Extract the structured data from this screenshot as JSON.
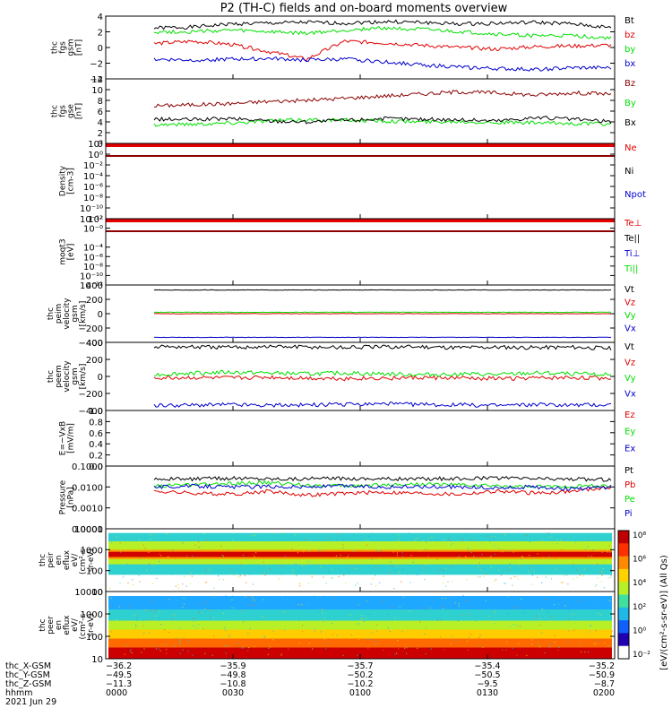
{
  "title": "P2 (TH-C) fields and on-board moments overview",
  "colors": {
    "black": "#000000",
    "red": "#e00000",
    "green": "#00e000",
    "blue": "#0000cc",
    "darkred": "#8b0000"
  },
  "chart_data": [
    {
      "type": "line",
      "id": "fgs",
      "ylabel": [
        "thc",
        "fgs",
        "gsm",
        "[nT]"
      ],
      "ylim": [
        -4,
        4
      ],
      "yticks": [
        "4",
        "2",
        "0",
        "−2",
        "−4"
      ],
      "ytick_values": [
        4,
        2,
        0,
        -2,
        -4
      ],
      "series": [
        {
          "name": "Bt",
          "color": "black",
          "values": [
            2.5,
            2.6,
            3.0,
            3.1,
            3.2,
            3.1,
            3.3,
            3.2,
            3.0,
            3.1,
            3.2,
            3.0,
            2.5
          ]
        },
        {
          "name": "bz",
          "color": "red",
          "values": [
            0.5,
            0.8,
            0.4,
            -0.5,
            -1.5,
            0.8,
            0.6,
            0.3,
            0.0,
            -0.2,
            0.1,
            0.2,
            0.3
          ]
        },
        {
          "name": "by",
          "color": "green",
          "values": [
            2.0,
            2.0,
            2.2,
            2.0,
            1.8,
            2.2,
            2.5,
            2.3,
            2.0,
            1.7,
            1.5,
            1.5,
            1.2
          ]
        },
        {
          "name": "bx",
          "color": "blue",
          "values": [
            -1.5,
            -1.6,
            -1.5,
            -1.4,
            -1.6,
            -1.5,
            -1.8,
            -2.2,
            -2.5,
            -2.7,
            -2.8,
            -2.6,
            -2.6
          ]
        }
      ]
    },
    {
      "type": "line",
      "id": "fgs-gse",
      "ylabel": [
        "thc",
        "fgs",
        "gse",
        "[nT]"
      ],
      "ylim": [
        0,
        12
      ],
      "yticks": [
        "12",
        "10",
        "8",
        "6",
        "4",
        "2",
        "0"
      ],
      "ytick_values": [
        12,
        10,
        8,
        6,
        4,
        2,
        0
      ],
      "series": [
        {
          "name": "Bz",
          "color": "darkred",
          "values": [
            7.0,
            7.2,
            7.4,
            7.8,
            8.0,
            8.4,
            8.8,
            9.2,
            9.6,
            9.4,
            9.0,
            9.4,
            9.2
          ]
        },
        {
          "name": "By",
          "color": "green",
          "values": [
            3.5,
            3.6,
            3.8,
            4.2,
            4.4,
            4.3,
            4.2,
            4.0,
            4.1,
            3.9,
            3.8,
            3.7,
            3.6
          ]
        },
        {
          "name": "Bx",
          "color": "black",
          "values": [
            4.5,
            4.4,
            4.6,
            4.2,
            4.0,
            4.3,
            4.6,
            4.5,
            4.4,
            4.2,
            4.8,
            4.5,
            4.0
          ]
        }
      ]
    },
    {
      "type": "line",
      "id": "density",
      "ylabel": [
        "Density",
        "[cm-3]"
      ],
      "yticks": [
        "10²",
        "10⁰",
        "10⁻²",
        "10⁻⁴",
        "10⁻⁶",
        "10⁻⁸",
        "10⁻¹⁰",
        "10⁻¹²"
      ],
      "ylim": [
        -12,
        2
      ],
      "ytick_values": [
        2,
        0,
        -2,
        -4,
        -6,
        -8,
        -10,
        -12
      ],
      "yscale": "log",
      "series": [
        {
          "name": "Ne",
          "color": "red"
        },
        {
          "name": "Ni",
          "color": "black"
        },
        {
          "name": "Npot",
          "color": "blue"
        }
      ]
    },
    {
      "type": "line",
      "id": "temperature",
      "ylabel": [
        "moqt3",
        "[eV]"
      ],
      "yticks": [
        "10²",
        "10⁻⁰",
        "10⁻⁴",
        "10⁻⁶",
        "10⁻⁸",
        "10⁻¹⁰",
        "10⁻¹²"
      ],
      "ylim": [
        -12,
        2
      ],
      "ytick_values": [
        2,
        0,
        -4,
        -6,
        -8,
        -10,
        -12
      ],
      "yscale": "log",
      "series": [
        {
          "name": "Te⊥",
          "color": "red"
        },
        {
          "name": "Te||",
          "color": "black"
        },
        {
          "name": "Ti⊥",
          "color": "blue"
        },
        {
          "name": "Ti||",
          "color": "green"
        }
      ]
    },
    {
      "type": "line",
      "id": "peim-velocity",
      "ylabel": [
        "thc",
        "peim",
        "velocity",
        "gsm",
        "[km/s]"
      ],
      "ylim": [
        -400,
        400
      ],
      "yticks": [
        "400",
        "200",
        "0",
        "−200",
        "−400"
      ],
      "ytick_values": [
        400,
        200,
        0,
        -200,
        -400
      ],
      "series": [
        {
          "name": "Vt",
          "color": "black",
          "values": [
            330,
            330,
            330,
            330,
            330,
            330,
            330,
            330,
            330,
            330,
            330,
            330,
            330
          ]
        },
        {
          "name": "Vz",
          "color": "red",
          "values": [
            0,
            0,
            0,
            0,
            0,
            0,
            0,
            0,
            0,
            0,
            0,
            0,
            0
          ]
        },
        {
          "name": "Vy",
          "color": "green",
          "values": [
            20,
            20,
            20,
            20,
            20,
            20,
            20,
            20,
            20,
            20,
            20,
            20,
            20
          ]
        },
        {
          "name": "Vx",
          "color": "blue",
          "values": [
            -330,
            -330,
            -330,
            -330,
            -330,
            -330,
            -330,
            -330,
            -330,
            -330,
            -330,
            -330,
            -330
          ]
        }
      ]
    },
    {
      "type": "line",
      "id": "peem-velocity",
      "ylabel": [
        "thc",
        "peem",
        "velocity",
        "gsm",
        "[km/s]"
      ],
      "ylim": [
        -400,
        400
      ],
      "yticks": [
        "400",
        "200",
        "0",
        "−200",
        "−400"
      ],
      "ytick_values": [
        400,
        200,
        0,
        -200,
        -400
      ],
      "series": [
        {
          "name": "Vt",
          "color": "black",
          "values": [
            350,
            345,
            340,
            350,
            345,
            340,
            345,
            350,
            340,
            345,
            340,
            345,
            330
          ]
        },
        {
          "name": "Vz",
          "color": "red",
          "values": [
            -20,
            -15,
            -20,
            -10,
            -20,
            -25,
            -20,
            -15,
            -20,
            -25,
            -20,
            -15,
            -20
          ]
        },
        {
          "name": "Vy",
          "color": "green",
          "values": [
            20,
            40,
            50,
            40,
            30,
            40,
            30,
            20,
            30,
            20,
            40,
            30,
            20
          ]
        },
        {
          "name": "Vx",
          "color": "blue",
          "values": [
            -340,
            -335,
            -330,
            -340,
            -335,
            -330,
            -320,
            -330,
            -335,
            -340,
            -330,
            -335,
            -330
          ]
        }
      ]
    },
    {
      "type": "line",
      "id": "efield",
      "ylabel": [
        "E=−VxB",
        "[mV/m]"
      ],
      "ylim": [
        0,
        1
      ],
      "yticks": [
        "1.0",
        "0.8",
        "0.6",
        "0.4",
        "0.2",
        "0.0"
      ],
      "ytick_values": [
        1,
        0.8,
        0.6,
        0.4,
        0.2,
        0
      ],
      "series": [
        {
          "name": "Ez",
          "color": "red"
        },
        {
          "name": "Ey",
          "color": "green"
        },
        {
          "name": "Ex",
          "color": "blue"
        }
      ]
    },
    {
      "type": "line",
      "id": "pressure",
      "ylabel": [
        "Pressure",
        "[nPa]"
      ],
      "ylim": [
        -4,
        -1
      ],
      "yticks": [
        "0.1000",
        "0.0100",
        "0.0010",
        "0.0001"
      ],
      "ytick_values": [
        -1,
        -2,
        -3,
        -4
      ],
      "yscale": "log",
      "series": [
        {
          "name": "Pt",
          "color": "black",
          "values": [
            -1.6,
            -1.62,
            -1.58,
            -1.6,
            -1.61,
            -1.59,
            -1.6,
            -1.62,
            -1.6,
            -1.58,
            -1.6,
            -1.62,
            -1.65
          ]
        },
        {
          "name": "Pb",
          "color": "red",
          "values": [
            -2.2,
            -2.3,
            -2.35,
            -2.2,
            -2.4,
            -2.3,
            -2.25,
            -2.3,
            -2.35,
            -2.2,
            -2.3,
            -2.2,
            -2.0
          ]
        },
        {
          "name": "Pe",
          "color": "green",
          "values": [
            -1.95,
            -1.9,
            -1.85,
            -1.8,
            -1.9,
            -1.95,
            -1.9,
            -1.85,
            -1.9,
            -1.95,
            -2.0,
            -1.95,
            -1.95
          ]
        },
        {
          "name": "Pi",
          "color": "blue",
          "values": [
            -2.0,
            -1.95,
            -2.0,
            -1.98,
            -2.0,
            -1.95,
            -2.0,
            -1.98,
            -2.0,
            -2.05,
            -2.0,
            -2.1,
            -2.0
          ]
        }
      ]
    },
    {
      "type": "heatmap",
      "id": "peir-spectrogram",
      "ylabel": [
        "thc",
        "peir",
        "en",
        "eflux",
        "eV/",
        "(cm²-s-",
        "sr-eV)"
      ],
      "yticks": [
        "10000",
        "1000",
        "100",
        "10"
      ],
      "ylim": [
        1,
        4
      ],
      "ytick_values": [
        4,
        3,
        2,
        1
      ],
      "yscale": "log",
      "band_rows": [
        {
          "y_range": [
            1.8,
            3.8
          ],
          "color": "#2fd0d0"
        },
        {
          "y_range": [
            2.3,
            3.4
          ],
          "color": "#b8f028"
        },
        {
          "y_range": [
            2.55,
            3.0
          ],
          "color": "#ff9a00"
        },
        {
          "y_range": [
            2.65,
            2.9
          ],
          "color": "#d00000"
        }
      ]
    },
    {
      "type": "heatmap",
      "id": "peer-spectrogram",
      "ylabel": [
        "thc",
        "peer",
        "en",
        "eflux",
        "eV/",
        "(cm²-s-",
        "sr-eV)"
      ],
      "yticks": [
        "10000",
        "1000",
        "100",
        "10"
      ],
      "ylim": [
        1,
        4
      ],
      "ytick_values": [
        4,
        3,
        2,
        1
      ],
      "yscale": "log",
      "band_rows": [
        {
          "y_range": [
            3.2,
            3.8
          ],
          "color": "#1fa8ff"
        },
        {
          "y_range": [
            2.7,
            3.2
          ],
          "color": "#2fd0d0"
        },
        {
          "y_range": [
            2.3,
            2.7
          ],
          "color": "#b8f028"
        },
        {
          "y_range": [
            1.9,
            2.3
          ],
          "color": "#ffcc00"
        },
        {
          "y_range": [
            1.5,
            1.9
          ],
          "color": "#ff6a00"
        },
        {
          "y_range": [
            0.9,
            1.5
          ],
          "color": "#cc0000"
        }
      ]
    }
  ],
  "colorbar": {
    "label": "[eV/(cm²-s-sr-eV)] (All Qs)",
    "ticks": [
      "10⁸",
      "10⁶",
      "10⁴",
      "10²",
      "10⁰",
      "10⁻²"
    ]
  },
  "xaxis": {
    "rows": [
      {
        "label": "thc_X-GSM",
        "values": [
          "−36.2",
          "−35.9",
          "−35.7",
          "−35.4",
          "−35.2"
        ]
      },
      {
        "label": "thc_Y-GSM",
        "values": [
          "−49.5",
          "−49.8",
          "−50.2",
          "−50.5",
          "−50.9"
        ]
      },
      {
        "label": "thc_Z-GSM",
        "values": [
          "−11.3",
          "−10.8",
          "−10.2",
          "−9.5",
          "−8.7"
        ]
      },
      {
        "label": "hhmm",
        "values": [
          "0000",
          "0030",
          "0100",
          "0130",
          "0200"
        ]
      }
    ],
    "date": "2021 Jun 29"
  }
}
